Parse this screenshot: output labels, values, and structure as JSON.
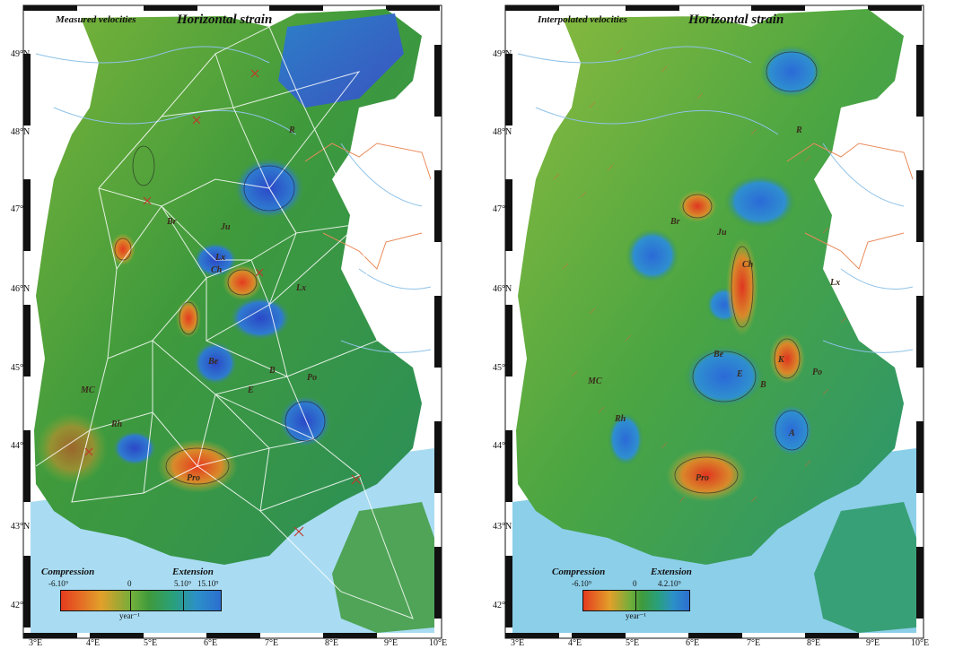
{
  "left": {
    "subtitle": "Measured velocities",
    "title": "Horizontal strain",
    "legend": {
      "compression": "Compression",
      "extension": "Extension",
      "ticks": [
        "-6.10⁹",
        "0",
        "5.10⁹",
        "15.10⁹"
      ],
      "unit": "year⁻¹"
    },
    "regions": [
      "R",
      "Br",
      "Ju",
      "Ch",
      "Lx",
      "Lx",
      "MC",
      "Rh",
      "Pro",
      "Po",
      "Be",
      "E",
      "B"
    ]
  },
  "right": {
    "subtitle": "Interpolated velocities",
    "title": "Horizontal strain",
    "legend": {
      "compression": "Compression",
      "extension": "Extension",
      "ticks": [
        "-6.10⁹",
        "0",
        "4.2.10⁹"
      ],
      "unit": "year⁻¹"
    },
    "regions": [
      "R",
      "Br",
      "Ju",
      "Ch",
      "Lx",
      "MC",
      "Rh",
      "Pro",
      "Po",
      "Be",
      "E",
      "B",
      "K",
      "A"
    ]
  },
  "lat_labels": [
    "49°N",
    "48°N",
    "47°N",
    "46°N",
    "45°N",
    "44°N",
    "43°N",
    "42°N"
  ],
  "lon_labels": [
    "3°E",
    "4°E",
    "5°E",
    "6°E",
    "7°E",
    "8°E",
    "9°E",
    "10°E"
  ],
  "colors": {
    "compression": "#e53b1f",
    "neutral": "#3f9a3c",
    "extension": "#2c6fd0",
    "sea": "#a9dcf2",
    "rivers": "#8fc2e8",
    "borders": "#e98a5a",
    "triangulation": "#ffffff"
  }
}
